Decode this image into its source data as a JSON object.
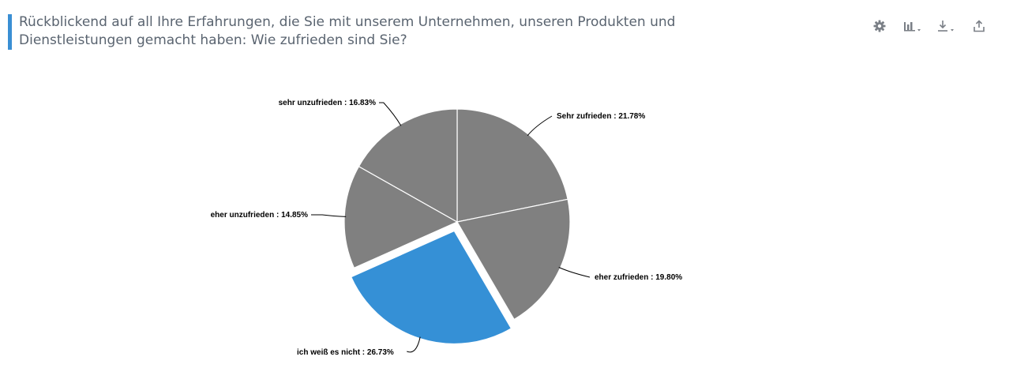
{
  "widget": {
    "title": "Rückblickend auf all Ihre Erfahrungen, die Sie mit unserem Unternehmen, unseren Produkten und Dienstleistungen gemacht haben: Wie zufrieden sind Sie?"
  },
  "toolbar": {
    "icons": [
      "gear-icon",
      "chart-type-icon",
      "download-icon",
      "share-icon"
    ]
  },
  "colors": {
    "slice_default": "#808080",
    "slice_highlight": "#3590d6",
    "accent": "#3a8fd4"
  },
  "chart_data": {
    "type": "pie",
    "series": [
      {
        "name": "Sehr zufrieden",
        "value": 21.78,
        "label": "Sehr zufrieden : 21.78%"
      },
      {
        "name": "eher zufrieden",
        "value": 19.8,
        "label": "eher zufrieden : 19.80%"
      },
      {
        "name": "ich weiß es nicht",
        "value": 26.73,
        "label": "ich weiß es nicht : 26.73%",
        "highlighted": true
      },
      {
        "name": "eher unzufrieden",
        "value": 14.85,
        "label": "eher unzufrieden : 14.85%"
      },
      {
        "name": "sehr unzufrieden",
        "value": 16.83,
        "label": "sehr unzufrieden : 16.83%"
      }
    ],
    "legend": "none",
    "data_labels": "outside with connector lines"
  }
}
